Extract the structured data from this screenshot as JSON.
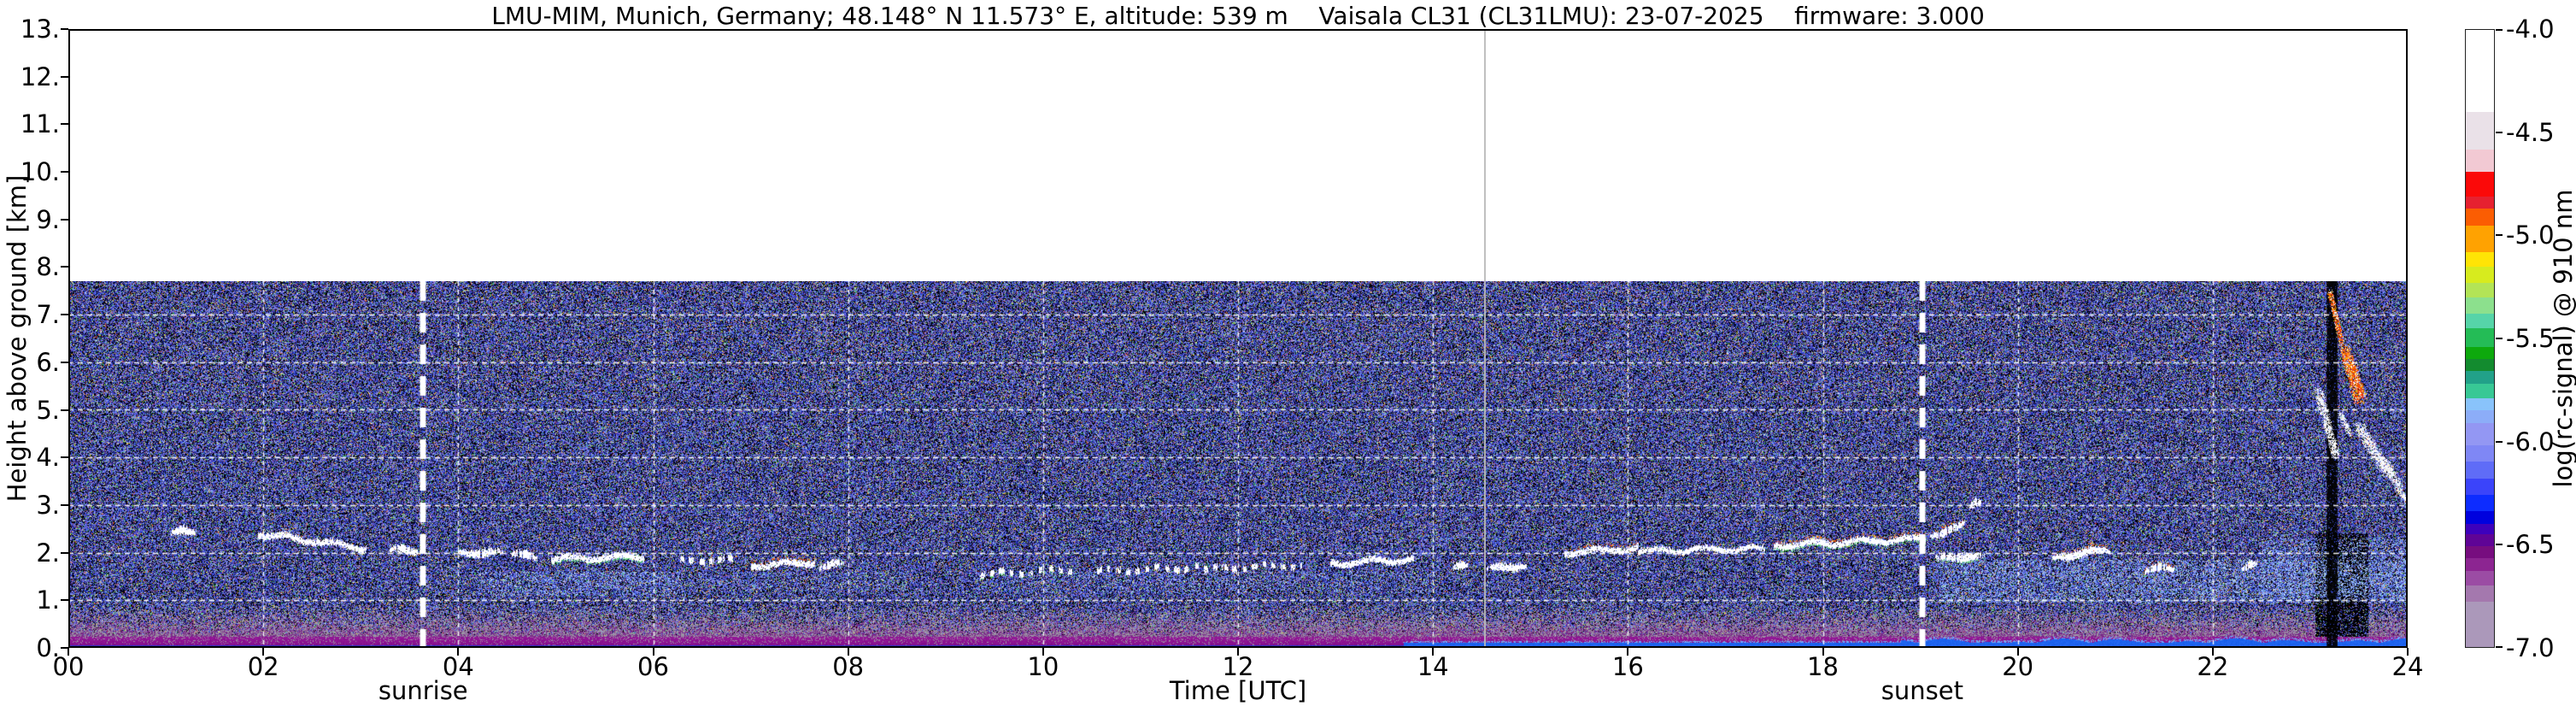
{
  "title": "LMU-MIM, Munich, Germany; 48.148° N 11.573° E, altitude: 539 m    Vaisala CL31 (CL31LMU): 23-07-2025    firmware: 3.000",
  "axes": {
    "x": {
      "label": "Time [UTC]",
      "range_hours": [
        0,
        24
      ],
      "tick_labels": [
        "00",
        "02",
        "04",
        "06",
        "08",
        "10",
        "12",
        "14",
        "16",
        "18",
        "20",
        "22",
        "24"
      ]
    },
    "y": {
      "label": "Height above ground [km]",
      "range_km": [
        0,
        13
      ],
      "tick_labels": [
        "0.",
        "1.",
        "2.",
        "3.",
        "4.",
        "5.",
        "6.",
        "7.",
        "8.",
        "9.",
        "10.",
        "11.",
        "12.",
        "13."
      ]
    }
  },
  "annotations": {
    "sunrise": {
      "label": "sunrise",
      "time_utc": 3.64
    },
    "sunset": {
      "label": "sunset",
      "time_utc": 19.02
    }
  },
  "colorbar": {
    "label": "log(rc-signal) @ 910 nm",
    "range": [
      -4.0,
      -7.0
    ],
    "tick_labels": [
      "-4.0",
      "-4.5",
      "-5.0",
      "-5.5",
      "-6.0",
      "-6.5",
      "-7.0"
    ],
    "segments": [
      {
        "v0": -4.0,
        "v1": -4.4,
        "color": "#ffffff"
      },
      {
        "v0": -4.4,
        "v1": -4.58,
        "color": "#eae1e8"
      },
      {
        "v0": -4.58,
        "v1": -4.69,
        "color": "#f2c9d3"
      },
      {
        "v0": -4.69,
        "v1": -4.81,
        "color": "#fb0909"
      },
      {
        "v0": -4.81,
        "v1": -4.87,
        "color": "#e62130"
      },
      {
        "v0": -4.87,
        "v1": -4.95,
        "color": "#fb5d02"
      },
      {
        "v0": -4.95,
        "v1": -5.08,
        "color": "#ffa201"
      },
      {
        "v0": -5.08,
        "v1": -5.15,
        "color": "#ffe405"
      },
      {
        "v0": -5.15,
        "v1": -5.23,
        "color": "#d7eb1e"
      },
      {
        "v0": -5.23,
        "v1": -5.3,
        "color": "#b3e456"
      },
      {
        "v0": -5.3,
        "v1": -5.38,
        "color": "#8ce08d"
      },
      {
        "v0": -5.38,
        "v1": -5.45,
        "color": "#56d4a8"
      },
      {
        "v0": -5.45,
        "v1": -5.54,
        "color": "#24bc56"
      },
      {
        "v0": -5.54,
        "v1": -5.6,
        "color": "#0da90d"
      },
      {
        "v0": -5.6,
        "v1": -5.66,
        "color": "#138b2f"
      },
      {
        "v0": -5.66,
        "v1": -5.72,
        "color": "#22a189"
      },
      {
        "v0": -5.72,
        "v1": -5.79,
        "color": "#38c895"
      },
      {
        "v0": -5.79,
        "v1": -5.85,
        "color": "#89c3fb"
      },
      {
        "v0": -5.85,
        "v1": -5.91,
        "color": "#8cadf8"
      },
      {
        "v0": -5.91,
        "v1": -6.02,
        "color": "#9397f3"
      },
      {
        "v0": -6.02,
        "v1": -6.1,
        "color": "#7f87f5"
      },
      {
        "v0": -6.1,
        "v1": -6.18,
        "color": "#5f6cf7"
      },
      {
        "v0": -6.18,
        "v1": -6.26,
        "color": "#3b44fa"
      },
      {
        "v0": -6.26,
        "v1": -6.34,
        "color": "#0d2cff"
      },
      {
        "v0": -6.34,
        "v1": -6.4,
        "color": "#0001de"
      },
      {
        "v0": -6.4,
        "v1": -6.45,
        "color": "#3d01bc"
      },
      {
        "v0": -6.45,
        "v1": -6.51,
        "color": "#5f0496"
      },
      {
        "v0": -6.51,
        "v1": -6.57,
        "color": "#770d7f"
      },
      {
        "v0": -6.57,
        "v1": -6.63,
        "color": "#8c2591"
      },
      {
        "v0": -6.63,
        "v1": -6.7,
        "color": "#9b4ca4"
      },
      {
        "v0": -6.7,
        "v1": -6.78,
        "color": "#a478ae"
      },
      {
        "v0": -6.78,
        "v1": -7.0,
        "color": "#ab98ba"
      }
    ]
  },
  "chart_data": {
    "type": "heatmap",
    "title": "Ceilometer attenuated backscatter quicklook, log(rc-signal) @ 910 nm",
    "x_range_hours": [
      0,
      24
    ],
    "y_range_km": [
      0,
      13
    ],
    "data_top_km": 7.7,
    "grid": {
      "h_lines_km": [
        1,
        2,
        3,
        4,
        5,
        6,
        7
      ],
      "v_lines_hours": [
        2,
        4,
        6,
        8,
        10,
        12,
        14,
        16,
        18,
        20,
        22
      ],
      "color": "#ffffff",
      "style": "dashed"
    },
    "artifact_line_hour": 14.53,
    "noise_palette": [
      {
        "p": 0.29,
        "c": [
          "#000000",
          "#060410"
        ]
      },
      {
        "p": 0.16,
        "c": [
          "#1a2a9a",
          "#2330b8",
          "#2c40d2"
        ]
      },
      {
        "p": 0.15,
        "c": [
          "#3d55d8",
          "#4f66e2",
          "#5a74ea"
        ]
      },
      {
        "p": 0.11,
        "c": [
          "#6b84ee",
          "#8198f2",
          "#93a7f5"
        ]
      },
      {
        "p": 0.1,
        "c": [
          "#553399",
          "#6a3fa8",
          "#7e4cb5"
        ]
      },
      {
        "p": 0.05,
        "c": [
          "#8a68c8",
          "#a58ad8"
        ]
      },
      {
        "p": 0.05,
        "c": [
          "#8f8f9c",
          "#aeaebc"
        ]
      },
      {
        "p": 0.045,
        "c": [
          "#2fa84f",
          "#4cc468",
          "#79e08c"
        ]
      },
      {
        "p": 0.022,
        "c": [
          "#cfd33a",
          "#e8e84f"
        ]
      },
      {
        "p": 0.018,
        "c": [
          "#e2662a",
          "#d23a2a",
          "#ff8833"
        ]
      },
      {
        "p": 0.015,
        "c": [
          "#eeeeee",
          "#ffffff"
        ]
      }
    ],
    "boundary_layer": {
      "solid_top_km": 0.24,
      "fade_top_km": 0.95,
      "deep": "#7c0b86",
      "bright": "#9a1b9c",
      "haze_purple": "#7b2d8a",
      "haze_gray": "#9c92a4"
    },
    "surface_line": {
      "thin_km": 0.05,
      "thick_km": 0.1,
      "wave_amp_km": 0.1,
      "bright_from_hour": 13.7,
      "wavy_from_hour": 18.8,
      "dim_color": "#2832c2",
      "bright_color": "#1e63ee",
      "glow_color": "#6ea8ff"
    },
    "aerosol_layers": [
      {
        "t0": 4.2,
        "t1": 6.3,
        "km0": 1.1,
        "km1": 1.6,
        "density": 0.2,
        "colors": [
          "#7fa8f2",
          "#9fc6fb",
          "#5d7fe6",
          "#b9d8ff"
        ]
      },
      {
        "t0": 6.3,
        "t1": 8.6,
        "km0": 1.2,
        "km1": 1.6,
        "density": 0.09,
        "colors": [
          "#7fa8f2",
          "#9fc6fb",
          "#5d7fe6",
          "#b9d8ff"
        ]
      },
      {
        "t0": 9.3,
        "t1": 14.0,
        "km0": 1.15,
        "km1": 1.6,
        "density": 0.09,
        "colors": [
          "#7fa8f2",
          "#9fc6fb",
          "#5d7fe6",
          "#b9d8ff"
        ]
      },
      {
        "t0": 19.2,
        "t1": 24.0,
        "km0": 0.95,
        "km1": 1.85,
        "density": 0.26,
        "colors": [
          "#7fa8f2",
          "#9fc6fb",
          "#5d7fe6",
          "#b9d8ff"
        ]
      },
      {
        "t0": 22.5,
        "t1": 24.0,
        "km0": 1.1,
        "km1": 2.3,
        "density": 0.2,
        "colors": [
          "#7fa8f2",
          "#9fc6fb",
          "#5d7fe6",
          "#b9d8ff"
        ]
      }
    ],
    "clouds": [
      {
        "t0": 1.05,
        "t1": 1.3,
        "km0": 2.35,
        "km1": 2.4,
        "style": "blobs",
        "green": false,
        "red": false
      },
      {
        "t0": 1.95,
        "t1": 3.05,
        "km0": 2.35,
        "km1": 2.05,
        "style": "solid",
        "green": false,
        "red": false
      },
      {
        "t0": 3.3,
        "t1": 3.6,
        "km0": 2.0,
        "km1": 2.0,
        "style": "blobs",
        "green": false,
        "red": false
      },
      {
        "t0": 4.0,
        "t1": 4.45,
        "km0": 1.95,
        "km1": 1.95,
        "style": "blobs",
        "green": false,
        "red": false
      },
      {
        "t0": 4.55,
        "t1": 4.8,
        "km0": 1.9,
        "km1": 1.9,
        "style": "blobs",
        "green": false,
        "red": false
      },
      {
        "t0": 4.95,
        "t1": 5.9,
        "km0": 1.82,
        "km1": 1.88,
        "style": "solid",
        "green": true,
        "red": false
      },
      {
        "t0": 6.25,
        "t1": 6.85,
        "km0": 1.78,
        "km1": 1.8,
        "style": "dashes",
        "green": false,
        "red": false
      },
      {
        "t0": 7.0,
        "t1": 7.65,
        "km0": 1.68,
        "km1": 1.75,
        "style": "solid",
        "green": false,
        "red": true
      },
      {
        "t0": 7.7,
        "t1": 7.95,
        "km0": 1.7,
        "km1": 1.7,
        "style": "blobs",
        "green": false,
        "red": false
      },
      {
        "t0": 9.35,
        "t1": 10.35,
        "km0": 1.5,
        "km1": 1.6,
        "style": "dashes",
        "green": true,
        "red": false
      },
      {
        "t0": 10.55,
        "t1": 11.6,
        "km0": 1.55,
        "km1": 1.65,
        "style": "dashes",
        "green": false,
        "red": false
      },
      {
        "t0": 11.65,
        "t1": 12.65,
        "km0": 1.6,
        "km1": 1.7,
        "style": "dashes",
        "green": false,
        "red": false
      },
      {
        "t0": 12.95,
        "t1": 13.8,
        "km0": 1.72,
        "km1": 1.82,
        "style": "solid",
        "green": false,
        "red": false
      },
      {
        "t0": 14.2,
        "t1": 14.35,
        "km0": 1.7,
        "km1": 1.7,
        "style": "blobs",
        "green": false,
        "red": false
      },
      {
        "t0": 14.55,
        "t1": 14.95,
        "km0": 1.6,
        "km1": 1.7,
        "style": "blobs",
        "green": false,
        "red": false
      },
      {
        "t0": 15.35,
        "t1": 16.1,
        "km0": 1.95,
        "km1": 2.05,
        "style": "solid",
        "green": false,
        "red": true
      },
      {
        "t0": 16.1,
        "t1": 17.4,
        "km0": 2.0,
        "km1": 2.05,
        "style": "thin",
        "green": false,
        "red": false
      },
      {
        "t0": 17.5,
        "t1": 19.05,
        "km0": 2.1,
        "km1": 2.25,
        "style": "solid",
        "green": true,
        "red": true
      },
      {
        "t0": 19.1,
        "t1": 19.45,
        "km0": 2.3,
        "km1": 2.55,
        "style": "blobs",
        "green": false,
        "red": true
      },
      {
        "t0": 19.5,
        "t1": 19.62,
        "km0": 2.9,
        "km1": 3.0,
        "style": "blobs",
        "green": false,
        "red": false
      },
      {
        "t0": 19.15,
        "t1": 19.65,
        "km0": 1.82,
        "km1": 1.9,
        "style": "blobs",
        "green": true,
        "red": false
      },
      {
        "t0": 20.35,
        "t1": 20.95,
        "km0": 1.85,
        "km1": 2.0,
        "style": "blobs",
        "green": false,
        "red": true
      },
      {
        "t0": 21.3,
        "t1": 21.6,
        "km0": 1.55,
        "km1": 1.65,
        "style": "blobs",
        "green": false,
        "red": true
      },
      {
        "t0": 22.3,
        "t1": 22.45,
        "km0": 1.65,
        "km1": 1.7,
        "style": "blobs",
        "green": false,
        "red": false
      }
    ],
    "precip_event": {
      "gap_column_hours": [
        23.17,
        23.28
      ],
      "dark_zone": {
        "t0": 23.05,
        "t1": 23.6,
        "km_bottom": 0.12,
        "km_top": 2.4
      },
      "streaks": [
        {
          "t0": 23.2,
          "km0": 7.5,
          "t1": 23.32,
          "km1": 6.4,
          "w": 6,
          "kind": "red"
        },
        {
          "t0": 23.35,
          "km0": 6.3,
          "t1": 23.5,
          "km1": 5.2,
          "w": 12,
          "kind": "red"
        },
        {
          "t0": 23.42,
          "km0": 5.95,
          "t1": 23.54,
          "km1": 5.3,
          "w": 8,
          "kind": "red"
        },
        {
          "t0": 23.08,
          "km0": 5.4,
          "t1": 23.26,
          "km1": 4.05,
          "w": 9,
          "kind": "white"
        },
        {
          "t0": 23.3,
          "km0": 4.95,
          "t1": 23.4,
          "km1": 4.5,
          "w": 6,
          "kind": "white"
        },
        {
          "t0": 23.5,
          "km0": 4.65,
          "t1": 23.78,
          "km1": 3.7,
          "w": 11,
          "kind": "white"
        },
        {
          "t0": 23.75,
          "km0": 3.95,
          "t1": 23.92,
          "km1": 3.35,
          "w": 9,
          "kind": "white"
        },
        {
          "t0": 23.9,
          "km0": 3.3,
          "t1": 24.0,
          "km1": 3.1,
          "w": 7,
          "kind": "white"
        }
      ]
    }
  }
}
